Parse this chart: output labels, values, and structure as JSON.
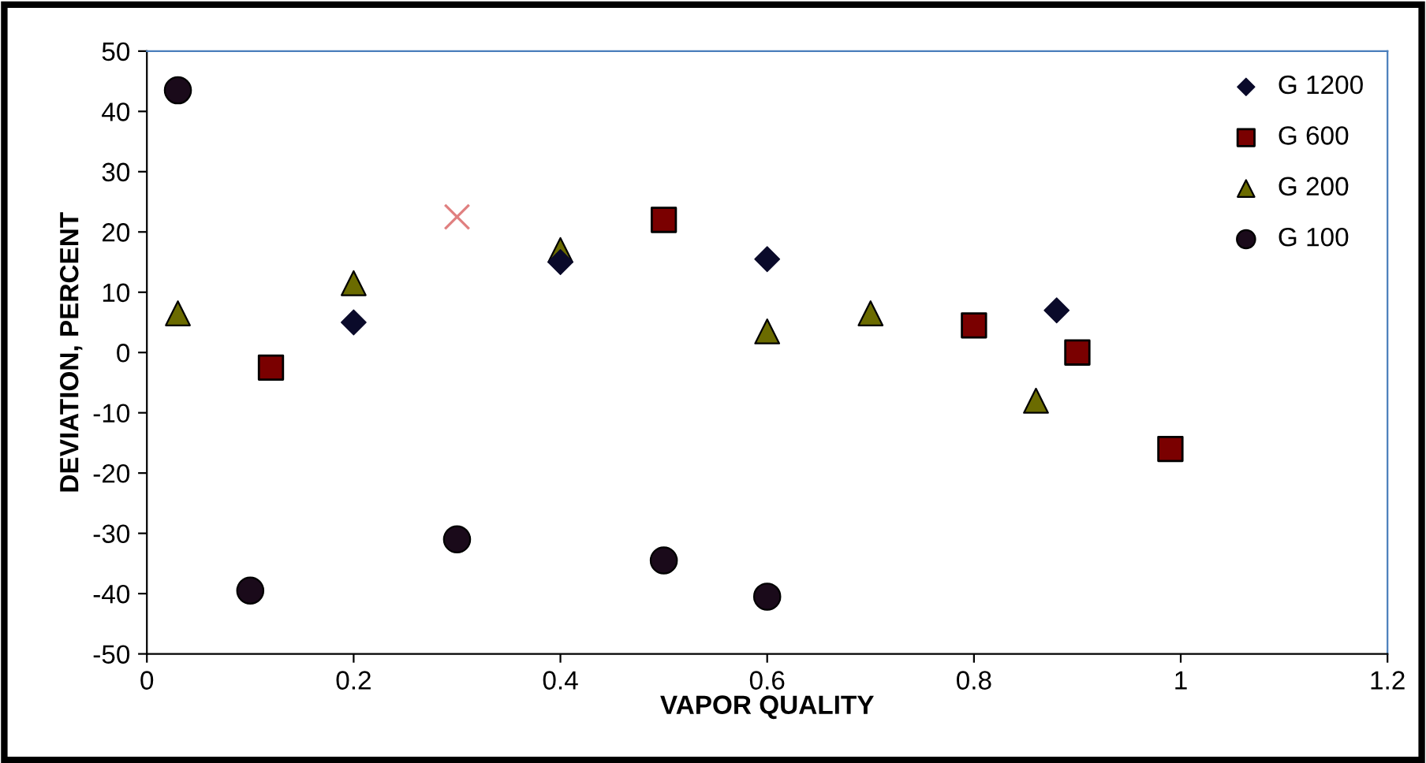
{
  "chart_data": {
    "type": "scatter",
    "xlabel": "VAPOR QUALITY",
    "ylabel": "DEVIATION, PERCENT",
    "xlim": [
      0,
      1.2
    ],
    "xticks": [
      0,
      0.2,
      0.4,
      0.6,
      0.8,
      1,
      1.2
    ],
    "ylim": [
      -50,
      50
    ],
    "yticks": [
      -50,
      -40,
      -30,
      -20,
      -10,
      0,
      10,
      20,
      30,
      40,
      50
    ],
    "grid": false,
    "legend": "top right",
    "series": [
      {
        "name": "G 1200",
        "color": "#0a0a2a",
        "marker": "diamond",
        "x": [
          0.2,
          0.4,
          0.6,
          0.88
        ],
        "values": [
          5,
          15,
          15.5,
          7
        ]
      },
      {
        "name": "G 600",
        "color": "#7a0000",
        "marker": "square",
        "x": [
          0.12,
          0.5,
          0.8,
          0.9,
          0.99
        ],
        "values": [
          -2.5,
          22,
          4.5,
          0,
          -16
        ]
      },
      {
        "name": "G 200",
        "color": "#6b6b00",
        "marker": "triangle",
        "x": [
          0.03,
          0.2,
          0.4,
          0.6,
          0.7,
          0.86
        ],
        "values": [
          6.5,
          11.5,
          17,
          3.5,
          6.5,
          -8
        ]
      },
      {
        "name": "G 100",
        "color": "#1a0a1a",
        "marker": "circle",
        "x": [
          0.03,
          0.1,
          0.3,
          0.5,
          0.6
        ],
        "values": [
          43.5,
          -39.5,
          -31,
          -34.5,
          -40.5
        ]
      },
      {
        "color": "#e08080",
        "marker": "cross",
        "x": [
          0.3
        ],
        "values": [
          22.5
        ]
      }
    ]
  }
}
